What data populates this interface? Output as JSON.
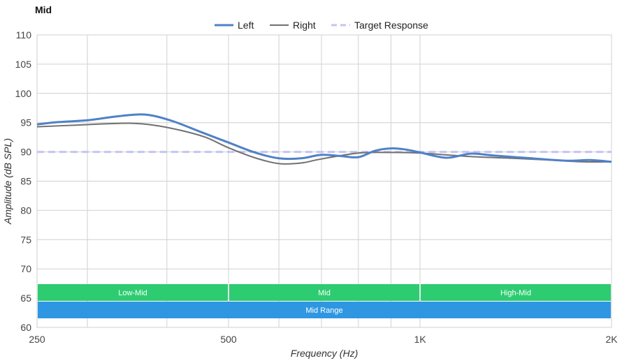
{
  "chart_data": {
    "type": "line",
    "title": "Mid",
    "xlabel": "Frequency (Hz)",
    "ylabel": "Amplitude (dB SPL)",
    "x_scale": "log",
    "xlim": [
      250,
      2000
    ],
    "ylim": [
      60,
      110
    ],
    "x_ticks": [
      250,
      500,
      1000,
      2000
    ],
    "x_tick_labels": [
      "250",
      "500",
      "1K",
      "2K"
    ],
    "y_ticks": [
      60,
      65,
      70,
      75,
      80,
      85,
      90,
      95,
      100,
      105,
      110
    ],
    "grid": true,
    "legend_position": "top-center",
    "series": [
      {
        "name": "Left",
        "color": "#4f81c7",
        "style": "solid-thick",
        "x": [
          250,
          270,
          300,
          330,
          360,
          380,
          410,
          450,
          500,
          550,
          600,
          650,
          700,
          750,
          800,
          850,
          900,
          950,
          1000,
          1100,
          1200,
          1300,
          1500,
          1700,
          1850,
          2000
        ],
        "y": [
          94.7,
          95.1,
          95.4,
          96.0,
          96.4,
          96.2,
          95.2,
          93.5,
          91.6,
          89.9,
          88.9,
          88.9,
          89.5,
          89.3,
          89.1,
          90.2,
          90.6,
          90.4,
          89.9,
          89.0,
          89.7,
          89.4,
          88.9,
          88.5,
          88.6,
          88.3
        ]
      },
      {
        "name": "Right",
        "color": "#707070",
        "style": "solid-thin",
        "x": [
          250,
          290,
          320,
          350,
          380,
          420,
          460,
          500,
          550,
          600,
          650,
          700,
          800,
          900,
          1000,
          1200,
          1400,
          1600,
          1800,
          2000
        ],
        "y": [
          94.3,
          94.6,
          94.8,
          94.9,
          94.6,
          93.7,
          92.5,
          90.7,
          89.0,
          88.0,
          88.1,
          88.8,
          89.8,
          89.9,
          89.8,
          89.2,
          88.9,
          88.6,
          88.3,
          88.3
        ]
      },
      {
        "name": "Target Response",
        "color": "#c4c4f5",
        "style": "dashed",
        "x": [
          250,
          2000
        ],
        "y": [
          90,
          90
        ]
      }
    ],
    "bands": [
      {
        "label": "Low-Mid",
        "x_range": [
          250,
          500
        ],
        "color": "#2ecc71",
        "row": 1
      },
      {
        "label": "Mid",
        "x_range": [
          500,
          1000
        ],
        "color": "#2ecc71",
        "row": 1
      },
      {
        "label": "High-Mid",
        "x_range": [
          1000,
          2000
        ],
        "color": "#2ecc71",
        "row": 1
      },
      {
        "label": "Mid Range",
        "x_range": [
          250,
          2000
        ],
        "color": "#2f97e2",
        "row": 2
      }
    ]
  }
}
